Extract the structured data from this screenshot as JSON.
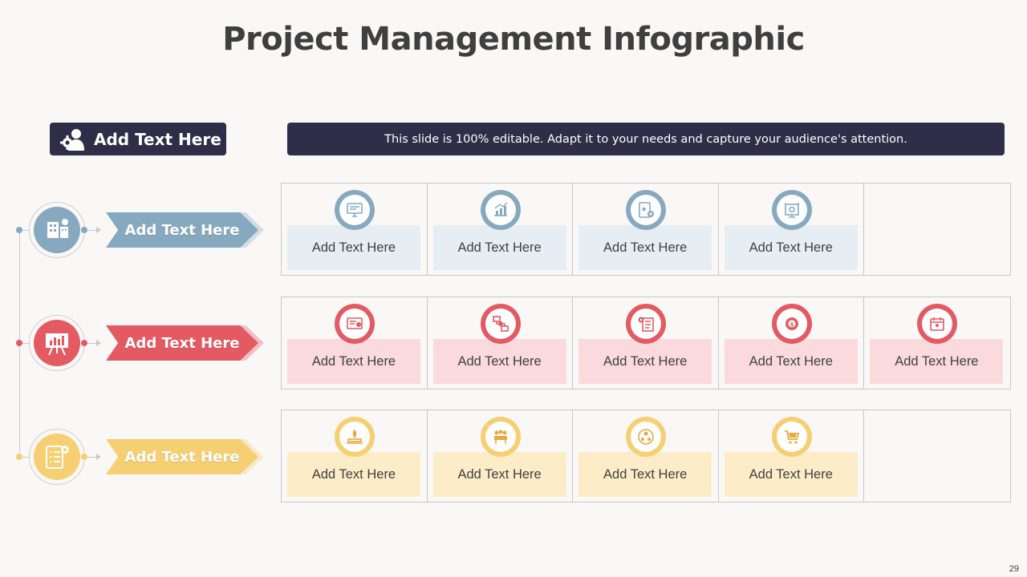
{
  "title": "Project Management Infographic",
  "header": {
    "label": "Add Text Here",
    "icon": "user-gear-icon"
  },
  "banner": "This slide is 100% editable. Adapt it to your needs and capture your audience's attention.",
  "colors": {
    "dark": "#2f2e48",
    "blue": "#87a9bf",
    "blue_light": "#e6eef4",
    "red": "#e35a63",
    "red_light": "#fadadd",
    "yellow": "#f6cf72",
    "yellow_light": "#fdecc8"
  },
  "rows": [
    {
      "label": "Add Text Here",
      "icon": "building-chart-icon",
      "cells": [
        {
          "text": "Add Text Here",
          "icon": "monitor-list-icon"
        },
        {
          "text": "Add Text Here",
          "icon": "growth-chart-icon"
        },
        {
          "text": "Add Text Here",
          "icon": "video-gear-icon"
        },
        {
          "text": "Add Text Here",
          "icon": "network-gear-icon"
        }
      ]
    },
    {
      "label": "Add Text Here",
      "icon": "presentation-board-icon",
      "cells": [
        {
          "text": "Add Text Here",
          "icon": "certificate-icon"
        },
        {
          "text": "Add Text Here",
          "icon": "process-flow-icon"
        },
        {
          "text": "Add Text Here",
          "icon": "checklist-gear-icon"
        },
        {
          "text": "Add Text Here",
          "icon": "gear-dollar-icon"
        },
        {
          "text": "Add Text Here",
          "icon": "calendar-user-icon"
        }
      ]
    },
    {
      "label": "Add Text Here",
      "icon": "checklist-settings-icon",
      "cells": [
        {
          "text": "Add Text Here",
          "icon": "laptop-rocket-icon"
        },
        {
          "text": "Add Text Here",
          "icon": "team-meeting-icon"
        },
        {
          "text": "Add Text Here",
          "icon": "team-network-icon"
        },
        {
          "text": "Add Text Here",
          "icon": "shopping-cart-icon"
        }
      ]
    }
  ],
  "page_number": "29"
}
